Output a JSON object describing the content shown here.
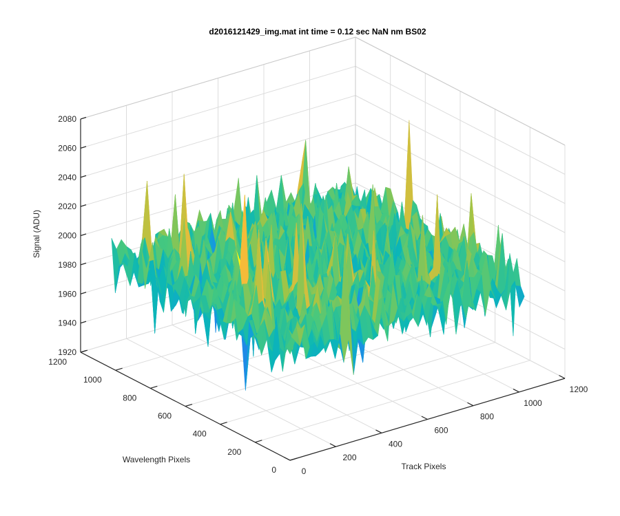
{
  "chart_data": {
    "type": "surface",
    "title": "d2016121429_img.mat int time = 0.12 sec  NaN nm BS02",
    "xlabel": "Track Pixels",
    "ylabel": "Wavelength Pixels",
    "zlabel": "Signal (ADU)",
    "xlim": [
      0,
      1200
    ],
    "ylim": [
      0,
      1200
    ],
    "zlim": [
      1920,
      2080
    ],
    "x_ticks": [
      0,
      200,
      400,
      600,
      800,
      1000,
      1200
    ],
    "y_ticks": [
      0,
      200,
      400,
      600,
      800,
      1000,
      1200
    ],
    "z_ticks": [
      1920,
      1940,
      1960,
      1980,
      2000,
      2020,
      2040,
      2060,
      2080
    ],
    "x_tick_labels": [
      "0",
      "200",
      "400",
      "600",
      "800",
      "1000",
      "1200"
    ],
    "y_tick_labels": [
      "0",
      "200",
      "400",
      "600",
      "800",
      "1000",
      "1200"
    ],
    "z_tick_labels": [
      "1920",
      "1940",
      "1960",
      "1980",
      "2000",
      "2020",
      "2040",
      "2060",
      "2080"
    ],
    "data_extent": {
      "x": [
        1,
        1024
      ],
      "y": [
        1,
        1024
      ]
    },
    "surface": {
      "mean": 1995,
      "noise_sd": 10,
      "spike_max": 60,
      "colormap": "parula"
    },
    "grid": true,
    "view": {
      "azimuth": -37.5,
      "elevation": 30
    }
  }
}
